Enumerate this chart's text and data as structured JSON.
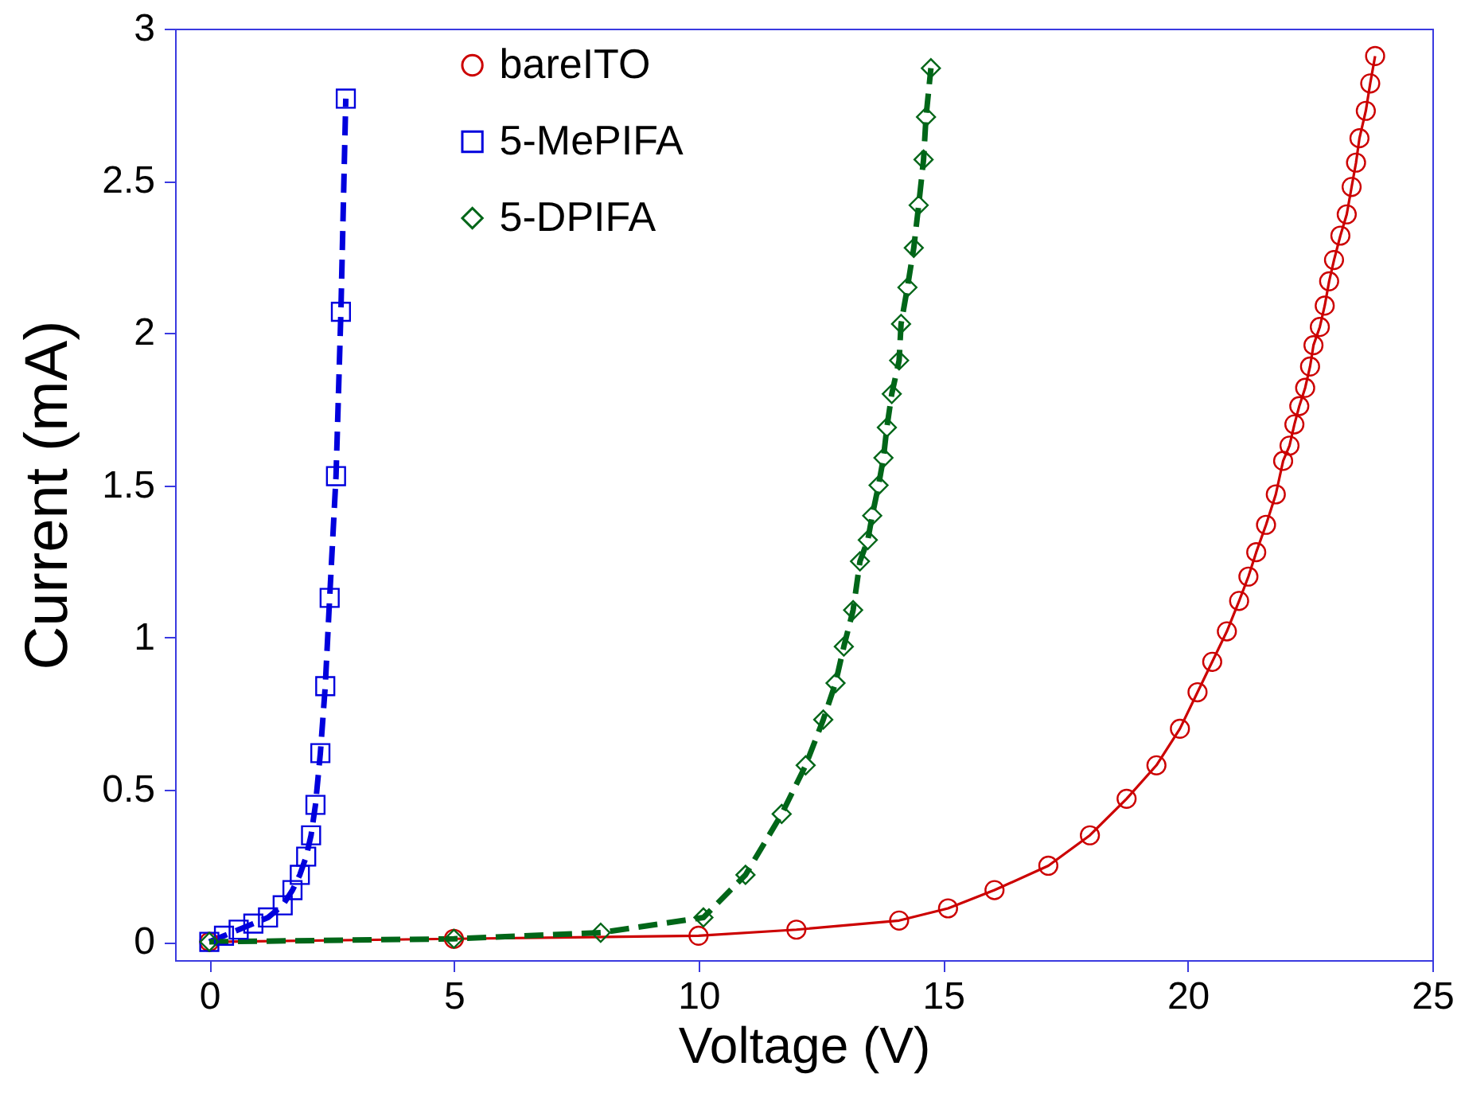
{
  "chart_data": {
    "type": "line",
    "xlabel": "Voltage (V)",
    "ylabel": "Current (mA)",
    "xlim": [
      -0.7,
      25
    ],
    "ylim": [
      -0.06,
      3
    ],
    "xticks": [
      0,
      5,
      10,
      15,
      20,
      25
    ],
    "yticks": [
      0,
      0.5,
      1,
      1.5,
      2,
      2.5,
      3
    ],
    "grid": false,
    "legend": "top left",
    "series": [
      {
        "name": "bareITO",
        "color": "#cc0000",
        "marker": "circle",
        "line_style": "solid",
        "x": [
          0,
          5,
          10,
          12,
          14.1,
          15.1,
          16.05,
          17.15,
          18,
          18.75,
          19.36,
          19.84,
          20.2,
          20.5,
          20.8,
          21.05,
          21.24,
          21.4,
          21.6,
          21.8,
          21.95,
          22.08,
          22.18,
          22.28,
          22.4,
          22.5,
          22.57,
          22.7,
          22.8,
          22.89,
          22.99,
          23.12,
          23.25,
          23.35,
          23.44,
          23.51,
          23.64,
          23.73,
          23.83
        ],
        "values": [
          0,
          0.01,
          0.02,
          0.04,
          0.07,
          0.11,
          0.17,
          0.25,
          0.35,
          0.47,
          0.58,
          0.7,
          0.82,
          0.92,
          1.02,
          1.12,
          1.2,
          1.28,
          1.37,
          1.47,
          1.58,
          1.63,
          1.7,
          1.76,
          1.82,
          1.89,
          1.96,
          2.02,
          2.09,
          2.17,
          2.24,
          2.32,
          2.39,
          2.48,
          2.56,
          2.64,
          2.73,
          2.82,
          2.91
        ]
      },
      {
        "name": "5-MePIFA",
        "color": "#0000dd",
        "marker": "square",
        "line_style": "dashed",
        "x": [
          0,
          0.3,
          0.6,
          0.9,
          1.2,
          1.5,
          1.7,
          1.85,
          1.98,
          2.08,
          2.17,
          2.27,
          2.37,
          2.46,
          2.59,
          2.69,
          2.79
        ],
        "values": [
          0,
          0.02,
          0.04,
          0.06,
          0.08,
          0.12,
          0.17,
          0.22,
          0.28,
          0.35,
          0.45,
          0.62,
          0.84,
          1.13,
          1.53,
          2.07,
          2.77
        ]
      },
      {
        "name": "5-DPIFA",
        "color": "#006618",
        "marker": "diamond",
        "line_style": "dashed",
        "x": [
          0,
          5,
          8,
          10.1,
          10.96,
          11.7,
          12.19,
          12.55,
          12.8,
          12.97,
          13.16,
          13.3,
          13.46,
          13.55,
          13.68,
          13.78,
          13.85,
          13.95,
          14.1,
          14.14,
          14.27,
          14.4,
          14.5,
          14.6,
          14.65,
          14.75
        ],
        "values": [
          0,
          0.01,
          0.03,
          0.08,
          0.22,
          0.42,
          0.58,
          0.73,
          0.85,
          0.97,
          1.09,
          1.25,
          1.32,
          1.4,
          1.5,
          1.59,
          1.69,
          1.8,
          1.91,
          2.03,
          2.15,
          2.28,
          2.42,
          2.57,
          2.71,
          2.87
        ]
      }
    ]
  }
}
